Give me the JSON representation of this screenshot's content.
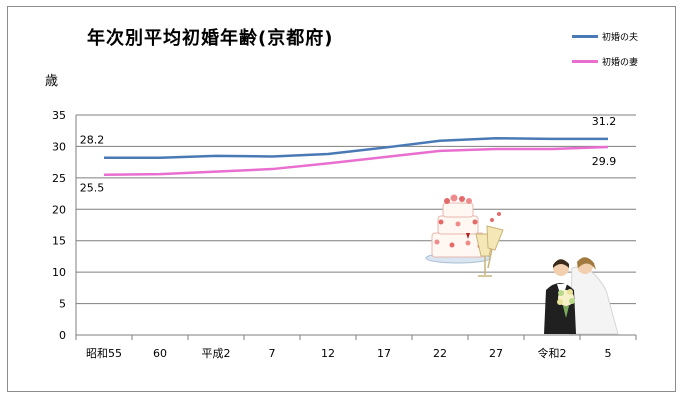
{
  "chart_data": {
    "type": "line",
    "title": "年次別平均初婚年齢(京都府)",
    "ylabel": "歳",
    "xlabel": "",
    "categories": [
      "昭和55",
      "60",
      "平成2",
      "7",
      "12",
      "17",
      "22",
      "27",
      "令和2",
      "5"
    ],
    "ylim": [
      0,
      35
    ],
    "yticks": [
      0,
      5,
      10,
      15,
      20,
      25,
      30,
      35
    ],
    "grid": true,
    "legend_position": "top-right",
    "series": [
      {
        "name": "初婚の夫",
        "color": "#4a7ab5",
        "values": [
          28.2,
          28.2,
          28.5,
          28.4,
          28.8,
          29.8,
          30.9,
          31.3,
          31.2,
          31.2
        ],
        "labels": {
          "first": "28.2",
          "last": "31.2"
        }
      },
      {
        "name": "初婚の妻",
        "color": "#e86fd0",
        "values": [
          25.5,
          25.6,
          26.0,
          26.4,
          27.3,
          28.3,
          29.3,
          29.6,
          29.6,
          29.9
        ],
        "labels": {
          "first": "25.5",
          "last": "29.9"
        }
      }
    ]
  }
}
